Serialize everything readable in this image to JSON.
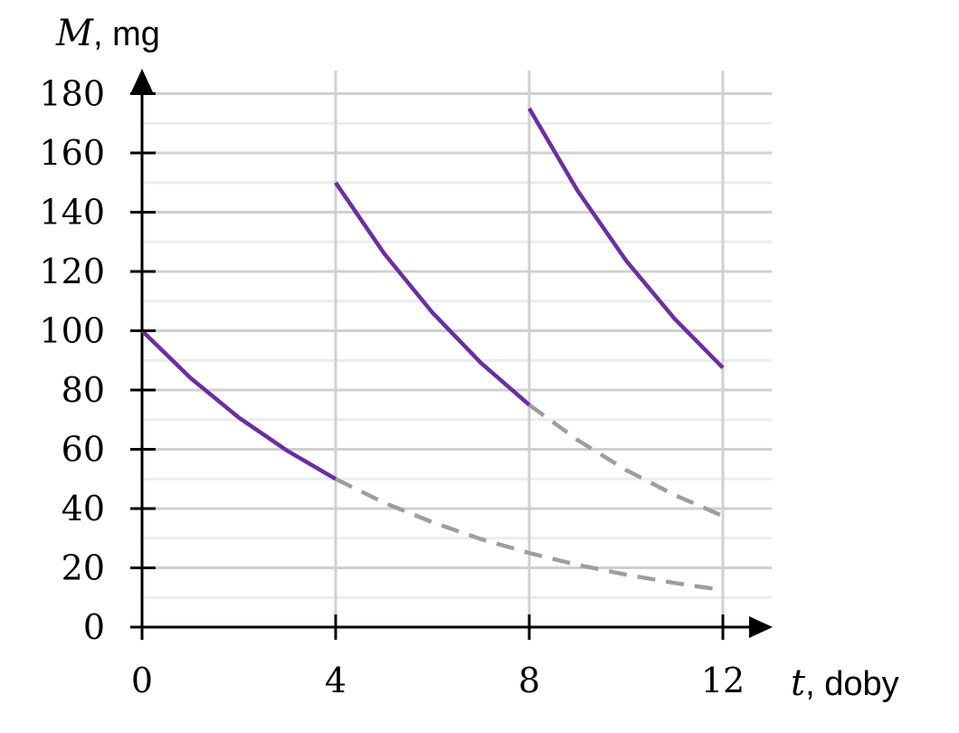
{
  "chart_data": {
    "type": "line",
    "xlabel": {
      "var": "t",
      "unit": ", doby"
    },
    "ylabel": {
      "var": "M",
      "unit": ", mg"
    },
    "xlim": [
      0,
      13
    ],
    "ylim": [
      0,
      180
    ],
    "x_ticks": [
      0,
      4,
      8,
      12
    ],
    "y_ticks": [
      0,
      20,
      40,
      60,
      80,
      100,
      120,
      140,
      160,
      180
    ],
    "y_minor_step": 10,
    "grid": true,
    "colors": {
      "solid": "#6b2fa0",
      "dashed": "#9e9e9e",
      "grid_major": "#d0d0d0",
      "grid_minor": "#ececec",
      "axis": "#000000"
    },
    "series": [
      {
        "style": "solid",
        "points": [
          [
            0,
            100
          ],
          [
            1,
            84.1
          ],
          [
            2,
            70.7
          ],
          [
            3,
            59.5
          ],
          [
            4,
            50
          ]
        ]
      },
      {
        "style": "solid",
        "points": [
          [
            4,
            150
          ],
          [
            5,
            126.1
          ],
          [
            6,
            106.1
          ],
          [
            7,
            89.2
          ],
          [
            8,
            75
          ]
        ]
      },
      {
        "style": "solid",
        "points": [
          [
            8,
            175
          ],
          [
            9,
            147.2
          ],
          [
            10,
            123.7
          ],
          [
            11,
            104.1
          ],
          [
            12,
            87.5
          ]
        ]
      },
      {
        "style": "dashed",
        "points": [
          [
            4,
            50
          ],
          [
            5,
            42.0
          ],
          [
            6,
            35.4
          ],
          [
            7,
            29.7
          ],
          [
            8,
            25
          ],
          [
            9,
            21.0
          ],
          [
            10,
            17.7
          ],
          [
            11,
            14.9
          ],
          [
            12,
            12.5
          ]
        ]
      },
      {
        "style": "dashed",
        "points": [
          [
            8,
            75
          ],
          [
            9,
            63.1
          ],
          [
            10,
            53.0
          ],
          [
            11,
            44.6
          ],
          [
            12,
            37.5
          ]
        ]
      }
    ]
  }
}
